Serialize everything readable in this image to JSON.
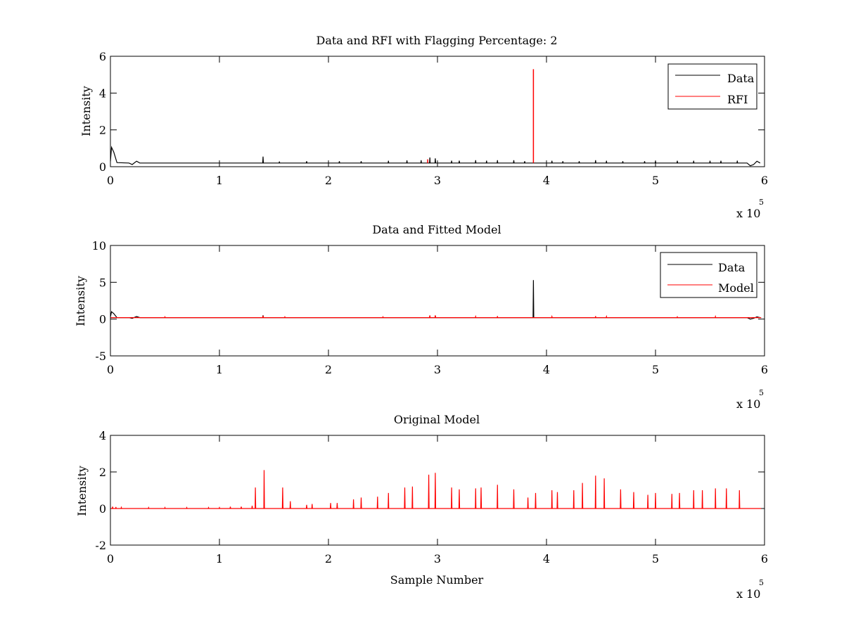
{
  "chart_data": [
    {
      "type": "line",
      "title": "Data and RFI with Flagging Percentage: 2",
      "xlabel": "",
      "ylabel": "Intensity",
      "xlim": [
        0,
        6
      ],
      "ylim": [
        0,
        6
      ],
      "xticks": [
        "0",
        "1",
        "2",
        "3",
        "4",
        "5",
        "6"
      ],
      "yticks": [
        "0",
        "2",
        "4",
        "6"
      ],
      "x_exponent": {
        "base": "x 10",
        "power": "5"
      },
      "legend_position": "top-right",
      "legend": [
        "Data",
        "RFI"
      ],
      "series": [
        {
          "name": "Data",
          "color": "#000000",
          "baseline": 0.2,
          "points": [
            [
              0,
              0.3
            ],
            [
              0.01,
              1.05
            ],
            [
              0.03,
              0.8
            ],
            [
              0.06,
              0.22
            ],
            [
              0.17,
              0.2
            ],
            [
              0.2,
              0.12
            ],
            [
              0.24,
              0.3
            ],
            [
              0.27,
              0.2
            ]
          ],
          "spikes": [
            [
              1.4,
              0.55
            ],
            [
              1.55,
              0.28
            ],
            [
              1.8,
              0.3
            ],
            [
              2.1,
              0.3
            ],
            [
              2.3,
              0.3
            ],
            [
              2.55,
              0.32
            ],
            [
              2.72,
              0.34
            ],
            [
              2.85,
              0.35
            ],
            [
              2.93,
              0.5
            ],
            [
              2.98,
              0.45
            ],
            [
              3.13,
              0.33
            ],
            [
              3.2,
              0.33
            ],
            [
              3.35,
              0.35
            ],
            [
              3.45,
              0.33
            ],
            [
              3.55,
              0.35
            ],
            [
              3.7,
              0.35
            ],
            [
              3.8,
              0.3
            ],
            [
              4.05,
              0.32
            ],
            [
              4.15,
              0.3
            ],
            [
              4.3,
              0.3
            ],
            [
              4.45,
              0.35
            ],
            [
              4.55,
              0.32
            ],
            [
              4.7,
              0.3
            ],
            [
              4.9,
              0.3
            ],
            [
              5.0,
              0.3
            ],
            [
              5.2,
              0.32
            ],
            [
              5.35,
              0.32
            ],
            [
              5.5,
              0.32
            ],
            [
              5.6,
              0.32
            ],
            [
              5.75,
              0.33
            ]
          ],
          "tail": [
            [
              5.84,
              0.2
            ],
            [
              5.87,
              0.05
            ],
            [
              5.9,
              0.12
            ],
            [
              5.93,
              0.3
            ],
            [
              5.96,
              0.2
            ]
          ]
        },
        {
          "name": "RFI",
          "color": "#ff0000",
          "spikes": [
            [
              2.91,
              0.4
            ],
            [
              3.88,
              5.3
            ]
          ]
        }
      ]
    },
    {
      "type": "line",
      "title": "Data and Fitted Model",
      "xlabel": "",
      "ylabel": "Intensity",
      "xlim": [
        0,
        6
      ],
      "ylim": [
        -5,
        10
      ],
      "xticks": [
        "0",
        "1",
        "2",
        "3",
        "4",
        "5",
        "6"
      ],
      "yticks": [
        "-5",
        "0",
        "5",
        "10"
      ],
      "x_exponent": {
        "base": "x 10",
        "power": "5"
      },
      "legend_position": "top-right",
      "legend": [
        "Data",
        "Model"
      ],
      "series": [
        {
          "name": "Data",
          "color": "#000000",
          "baseline": 0.2,
          "points": [
            [
              0,
              0.3
            ],
            [
              0.01,
              1.0
            ],
            [
              0.03,
              0.75
            ],
            [
              0.06,
              0.2
            ],
            [
              0.17,
              0.2
            ],
            [
              0.2,
              0.1
            ],
            [
              0.24,
              0.35
            ],
            [
              0.27,
              0.2
            ]
          ],
          "spikes": [
            [
              1.4,
              0.5
            ],
            [
              2.93,
              0.45
            ],
            [
              2.98,
              0.45
            ],
            [
              3.88,
              5.3
            ]
          ],
          "tail": [
            [
              5.84,
              0.2
            ],
            [
              5.87,
              0.0
            ],
            [
              5.9,
              0.1
            ],
            [
              5.93,
              0.3
            ],
            [
              5.96,
              0.2
            ]
          ]
        },
        {
          "name": "Model",
          "color": "#ff0000",
          "baseline": 0.2,
          "spikes": [
            [
              0.5,
              0.3
            ],
            [
              1.4,
              0.45
            ],
            [
              1.6,
              0.3
            ],
            [
              2.5,
              0.3
            ],
            [
              2.93,
              0.5
            ],
            [
              2.98,
              0.5
            ],
            [
              3.35,
              0.35
            ],
            [
              3.55,
              0.4
            ],
            [
              4.05,
              0.35
            ],
            [
              4.45,
              0.4
            ],
            [
              4.55,
              0.35
            ],
            [
              5.2,
              0.3
            ],
            [
              5.55,
              0.35
            ]
          ]
        }
      ]
    },
    {
      "type": "line",
      "title": "Original Model",
      "xlabel": "Sample Number",
      "ylabel": "Intensity",
      "xlim": [
        0,
        6
      ],
      "ylim": [
        -2,
        4
      ],
      "xticks": [
        "0",
        "1",
        "2",
        "3",
        "4",
        "5",
        "6"
      ],
      "yticks": [
        "-2",
        "0",
        "2",
        "4"
      ],
      "x_exponent": {
        "base": "x 10",
        "power": "5"
      },
      "legend": [],
      "series": [
        {
          "color": "#ff0000",
          "baseline": 0.0,
          "spikes": [
            [
              0.02,
              0.1
            ],
            [
              0.05,
              0.08
            ],
            [
              0.1,
              0.06
            ],
            [
              0.35,
              0.05
            ],
            [
              0.5,
              0.05
            ],
            [
              0.7,
              0.05
            ],
            [
              0.9,
              0.05
            ],
            [
              1.0,
              0.05
            ],
            [
              1.1,
              0.1
            ],
            [
              1.2,
              0.1
            ],
            [
              1.3,
              0.15
            ],
            [
              1.33,
              1.15
            ],
            [
              1.41,
              2.1
            ],
            [
              1.58,
              1.15
            ],
            [
              1.65,
              0.4
            ],
            [
              1.8,
              0.2
            ],
            [
              1.85,
              0.25
            ],
            [
              2.02,
              0.3
            ],
            [
              2.08,
              0.3
            ],
            [
              2.23,
              0.5
            ],
            [
              2.3,
              0.6
            ],
            [
              2.45,
              0.65
            ],
            [
              2.55,
              0.85
            ],
            [
              2.7,
              1.15
            ],
            [
              2.77,
              1.2
            ],
            [
              2.92,
              1.85
            ],
            [
              2.98,
              1.95
            ],
            [
              3.13,
              1.15
            ],
            [
              3.2,
              1.05
            ],
            [
              3.35,
              1.1
            ],
            [
              3.4,
              1.15
            ],
            [
              3.55,
              1.3
            ],
            [
              3.7,
              1.05
            ],
            [
              3.83,
              0.6
            ],
            [
              3.9,
              0.85
            ],
            [
              4.05,
              1.0
            ],
            [
              4.1,
              0.9
            ],
            [
              4.25,
              1.0
            ],
            [
              4.33,
              1.4
            ],
            [
              4.45,
              1.8
            ],
            [
              4.53,
              1.65
            ],
            [
              4.68,
              1.05
            ],
            [
              4.8,
              0.9
            ],
            [
              4.93,
              0.75
            ],
            [
              5.0,
              0.85
            ],
            [
              5.15,
              0.8
            ],
            [
              5.22,
              0.85
            ],
            [
              5.35,
              1.0
            ],
            [
              5.43,
              1.0
            ],
            [
              5.55,
              1.1
            ],
            [
              5.65,
              1.1
            ],
            [
              5.77,
              1.0
            ]
          ]
        }
      ]
    }
  ]
}
